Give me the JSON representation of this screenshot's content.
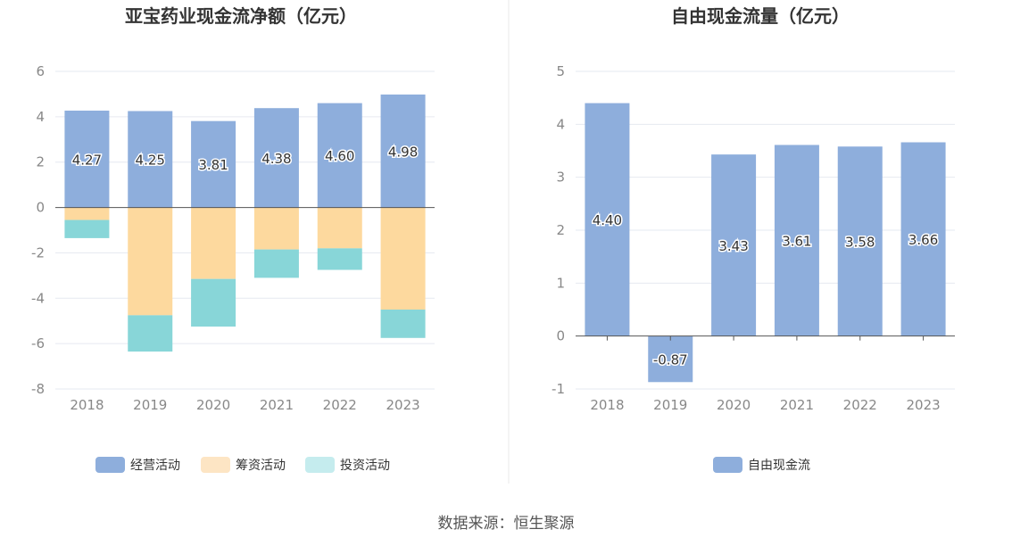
{
  "footer": {
    "source": "数据来源：恒生聚源"
  },
  "chart_data": [
    {
      "type": "bar",
      "stacked": true,
      "title": "亚宝药业现金流净额（亿元）",
      "categories": [
        "2018",
        "2019",
        "2020",
        "2021",
        "2022",
        "2023"
      ],
      "series": [
        {
          "name": "经营活动",
          "color": "#8eaedc",
          "values": [
            4.27,
            4.25,
            3.81,
            4.38,
            4.6,
            4.98
          ],
          "labels": [
            "4.27",
            "4.25",
            "3.81",
            "4.38",
            "4.60",
            "4.98"
          ]
        },
        {
          "name": "筹资活动",
          "color": "#fdd99e",
          "values": [
            -0.55,
            -4.75,
            -3.15,
            -1.85,
            -1.8,
            -4.5
          ]
        },
        {
          "name": "投资活动",
          "color": "#88d6d8",
          "values": [
            -0.8,
            -1.6,
            -2.1,
            -1.25,
            -0.95,
            -1.25
          ]
        }
      ],
      "legend_colors": [
        "#8eaedc",
        "#fde5c4",
        "#c5ecee"
      ],
      "ylim": [
        -8,
        6
      ],
      "yticks": [
        6,
        4,
        2,
        0,
        -2,
        -4,
        -6,
        -8
      ],
      "legend": "bottom"
    },
    {
      "type": "bar",
      "title": "自由现金流量（亿元）",
      "categories": [
        "2018",
        "2019",
        "2020",
        "2021",
        "2022",
        "2023"
      ],
      "series": [
        {
          "name": "自由现金流",
          "color": "#8eaedc",
          "values": [
            4.4,
            -0.87,
            3.43,
            3.61,
            3.58,
            3.66
          ],
          "labels": [
            "4.40",
            "-0.87",
            "3.43",
            "3.61",
            "3.58",
            "3.66"
          ]
        }
      ],
      "legend_colors": [
        "#8eaedc"
      ],
      "ylim": [
        -1,
        5
      ],
      "yticks": [
        5,
        4,
        3,
        2,
        1,
        0,
        -1
      ],
      "legend": "bottom"
    }
  ]
}
